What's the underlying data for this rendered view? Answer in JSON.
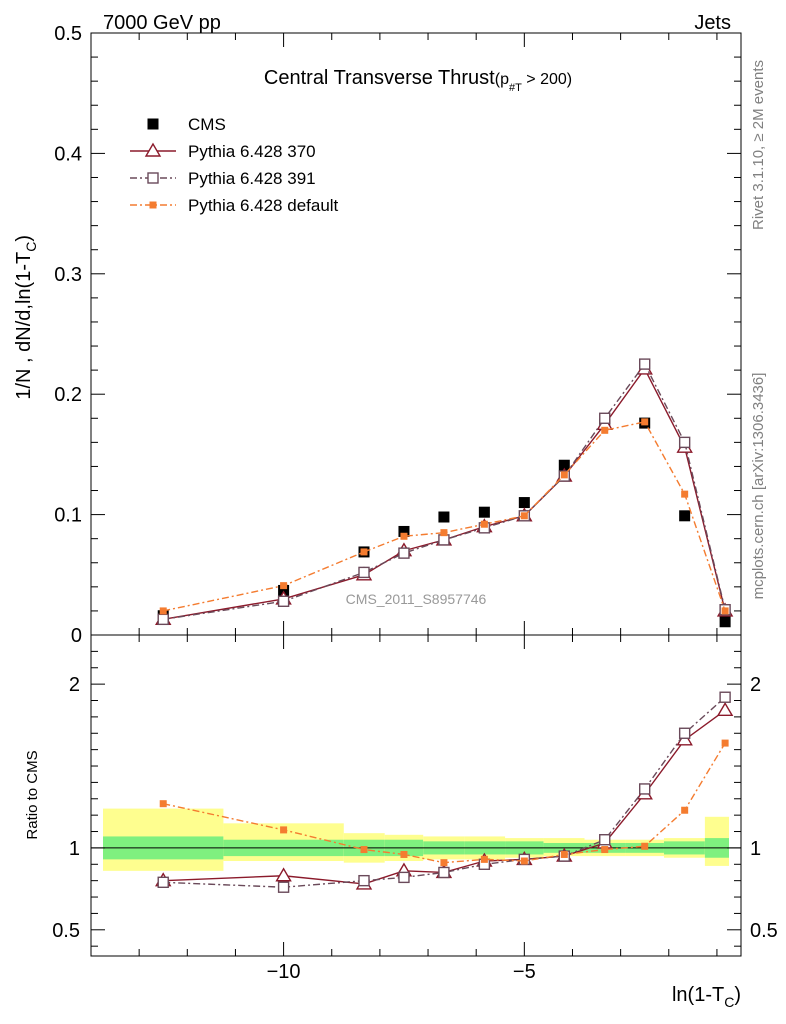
{
  "header": {
    "left": "7000 GeV pp",
    "right": "Jets"
  },
  "side_text": {
    "rivet": "Rivet 3.1.10, ≥ 2M events",
    "mcplots": "mcplots.cern.ch [arXiv:1306.3436]"
  },
  "watermark": "CMS_2011_S8957746",
  "colors": {
    "cms": "#000000",
    "p370": "#8b1a2b",
    "p391": "#6a4a5a",
    "pdef": "#f47c30",
    "band_inner": "#7ff07f",
    "band_outer": "#fefe8f"
  },
  "chart_data": [
    {
      "type": "scatter",
      "panel": "main",
      "title_main": "Central Transverse Thrust",
      "title_sub": "(p",
      "title_sub_index": "#T",
      "title_cut": " > 200)",
      "ylabel_main": "1/N , dN/d,ln(1-T",
      "ylabel_sub": "C",
      "ylabel_end": ")",
      "xlabel_main": "ln(1-T",
      "xlabel_sub": "C",
      "xlabel_end": ")",
      "xlim": [
        -14.0,
        -0.5
      ],
      "ylim": [
        0,
        0.5
      ],
      "xticks": [
        -10,
        -5
      ],
      "xtick_labels": [
        "−10",
        "−5"
      ],
      "yticks": [
        0,
        0.1,
        0.2,
        0.3,
        0.4,
        0.5
      ],
      "ytick_labels": [
        "0",
        "0.1",
        "0.2",
        "0.3",
        "0.4",
        "0.5"
      ],
      "x": [
        -12.5,
        -10.0,
        -8.33,
        -7.5,
        -6.67,
        -5.83,
        -5.0,
        -4.17,
        -3.33,
        -2.5,
        -1.67,
        -0.83
      ],
      "series": [
        {
          "name": "CMS",
          "key": "cms",
          "style": "data",
          "y": [
            0.016,
            0.037,
            0.069,
            0.086,
            0.098,
            0.102,
            0.11,
            0.141,
            0.175,
            0.176,
            0.099,
            0.011
          ]
        },
        {
          "name": "Pythia 6.428 370",
          "key": "p370",
          "style": "triangle",
          "y": [
            0.013,
            0.03,
            0.05,
            0.07,
            0.079,
            0.09,
            0.099,
            0.132,
            0.175,
            0.221,
            0.156,
            0.02
          ]
        },
        {
          "name": "Pythia 6.428 391",
          "key": "p391",
          "style": "square",
          "y": [
            0.013,
            0.028,
            0.052,
            0.068,
            0.079,
            0.089,
            0.099,
            0.132,
            0.18,
            0.225,
            0.16,
            0.021
          ]
        },
        {
          "name": "Pythia 6.428 default",
          "key": "pdef",
          "style": "small",
          "y": [
            0.02,
            0.041,
            0.069,
            0.082,
            0.085,
            0.092,
            0.099,
            0.133,
            0.17,
            0.177,
            0.117,
            0.02
          ]
        }
      ],
      "legend": "top-left"
    },
    {
      "type": "line",
      "panel": "ratio",
      "ylabel": "Ratio to CMS",
      "xlim": [
        -14.0,
        -0.5
      ],
      "ylim": [
        0.34,
        2.3
      ],
      "yticks": [
        0.5,
        1,
        2
      ],
      "ytick_labels": [
        "0.5",
        "1",
        "2"
      ],
      "reference": 1,
      "bands": [
        {
          "x0": -14.0,
          "x1": -11.25,
          "inner": [
            0.93,
            1.07
          ],
          "outer": [
            0.86,
            1.24
          ]
        },
        {
          "x0": -11.25,
          "x1": -8.75,
          "inner": [
            0.95,
            1.05
          ],
          "outer": [
            0.92,
            1.15
          ]
        },
        {
          "x0": -8.75,
          "x1": -7.9,
          "inner": [
            0.95,
            1.05
          ],
          "outer": [
            0.91,
            1.09
          ]
        },
        {
          "x0": -7.9,
          "x1": -7.1,
          "inner": [
            0.95,
            1.05
          ],
          "outer": [
            0.92,
            1.08
          ]
        },
        {
          "x0": -7.1,
          "x1": -6.25,
          "inner": [
            0.96,
            1.04
          ],
          "outer": [
            0.93,
            1.07
          ]
        },
        {
          "x0": -6.25,
          "x1": -5.4,
          "inner": [
            0.96,
            1.04
          ],
          "outer": [
            0.93,
            1.07
          ]
        },
        {
          "x0": -5.4,
          "x1": -4.6,
          "inner": [
            0.96,
            1.04
          ],
          "outer": [
            0.94,
            1.06
          ]
        },
        {
          "x0": -4.6,
          "x1": -3.75,
          "inner": [
            0.97,
            1.03
          ],
          "outer": [
            0.95,
            1.06
          ]
        },
        {
          "x0": -3.75,
          "x1": -2.9,
          "inner": [
            0.97,
            1.03
          ],
          "outer": [
            0.95,
            1.05
          ]
        },
        {
          "x0": -2.9,
          "x1": -2.1,
          "inner": [
            0.97,
            1.03
          ],
          "outer": [
            0.95,
            1.05
          ]
        },
        {
          "x0": -2.1,
          "x1": -1.25,
          "inner": [
            0.96,
            1.04
          ],
          "outer": [
            0.94,
            1.06
          ]
        },
        {
          "x0": -1.25,
          "x1": -0.4,
          "inner": [
            0.94,
            1.06
          ],
          "outer": [
            0.89,
            1.19
          ]
        }
      ],
      "x": [
        -12.5,
        -10.0,
        -8.33,
        -7.5,
        -6.67,
        -5.83,
        -5.0,
        -4.17,
        -3.33,
        -2.5,
        -1.67,
        -0.83
      ],
      "series": [
        {
          "name": "Pythia 6.428 370",
          "key": "p370",
          "style": "triangle",
          "y": [
            0.8,
            0.83,
            0.78,
            0.86,
            0.85,
            0.92,
            0.93,
            0.95,
            1.03,
            1.33,
            1.66,
            1.84
          ]
        },
        {
          "name": "Pythia 6.428 391",
          "key": "p391",
          "style": "square",
          "y": [
            0.79,
            0.76,
            0.8,
            0.82,
            0.85,
            0.9,
            0.93,
            0.95,
            1.05,
            1.36,
            1.7,
            1.92
          ]
        },
        {
          "name": "Pythia 6.428 default",
          "key": "pdef",
          "style": "small",
          "y": [
            1.27,
            1.11,
            0.99,
            0.96,
            0.91,
            0.93,
            0.92,
            0.96,
            0.99,
            1.01,
            1.23,
            1.64
          ]
        }
      ]
    }
  ]
}
